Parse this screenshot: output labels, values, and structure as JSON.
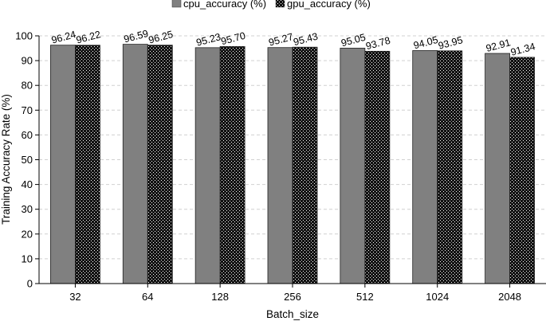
{
  "chart_data": {
    "type": "bar",
    "categories": [
      "32",
      "64",
      "128",
      "256",
      "512",
      "1024",
      "2048"
    ],
    "series": [
      {
        "name": "cpu_accuracy (%)",
        "values": [
          96.24,
          96.59,
          95.23,
          95.27,
          95.05,
          94.05,
          92.91
        ],
        "labels": [
          "96.24",
          "96.59",
          "95.23",
          "95.27",
          "95.05",
          "94.05",
          "92.91"
        ]
      },
      {
        "name": "gpu_accuracy (%)",
        "values": [
          96.22,
          96.25,
          95.7,
          95.43,
          93.78,
          93.95,
          91.34
        ],
        "labels": [
          "96.22",
          "96.25",
          "95.70",
          "95.43",
          "93.78",
          "93.95",
          "91.34"
        ]
      }
    ],
    "xlabel": "Batch_size",
    "ylabel": "Training Accuracy Rate (%)",
    "ylim": [
      0,
      100
    ],
    "yticks": [
      "0",
      "10",
      "20",
      "30",
      "40",
      "50",
      "60",
      "70",
      "80",
      "90",
      "100"
    ],
    "grid": true,
    "legend_position": "top",
    "colors": {
      "cpu": "#808080",
      "gpu": "#1a1a1a",
      "grid": "#d0d0d0"
    }
  }
}
